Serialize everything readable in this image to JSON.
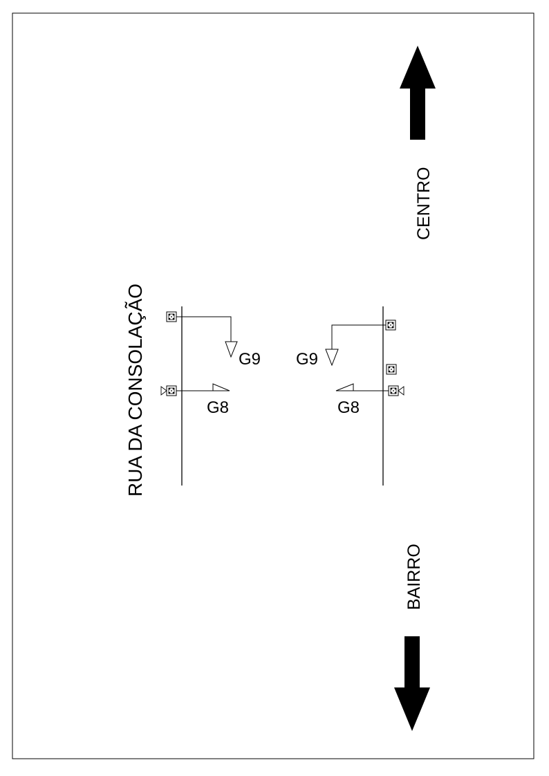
{
  "street_name": "RUA DA CONSOLAÇÃO",
  "direction_top": "CENTRO",
  "direction_bottom": "BAIRRO",
  "groups": {
    "left_g9": "G9",
    "left_g8": "G8",
    "right_g9": "G9",
    "right_g8": "G8"
  }
}
